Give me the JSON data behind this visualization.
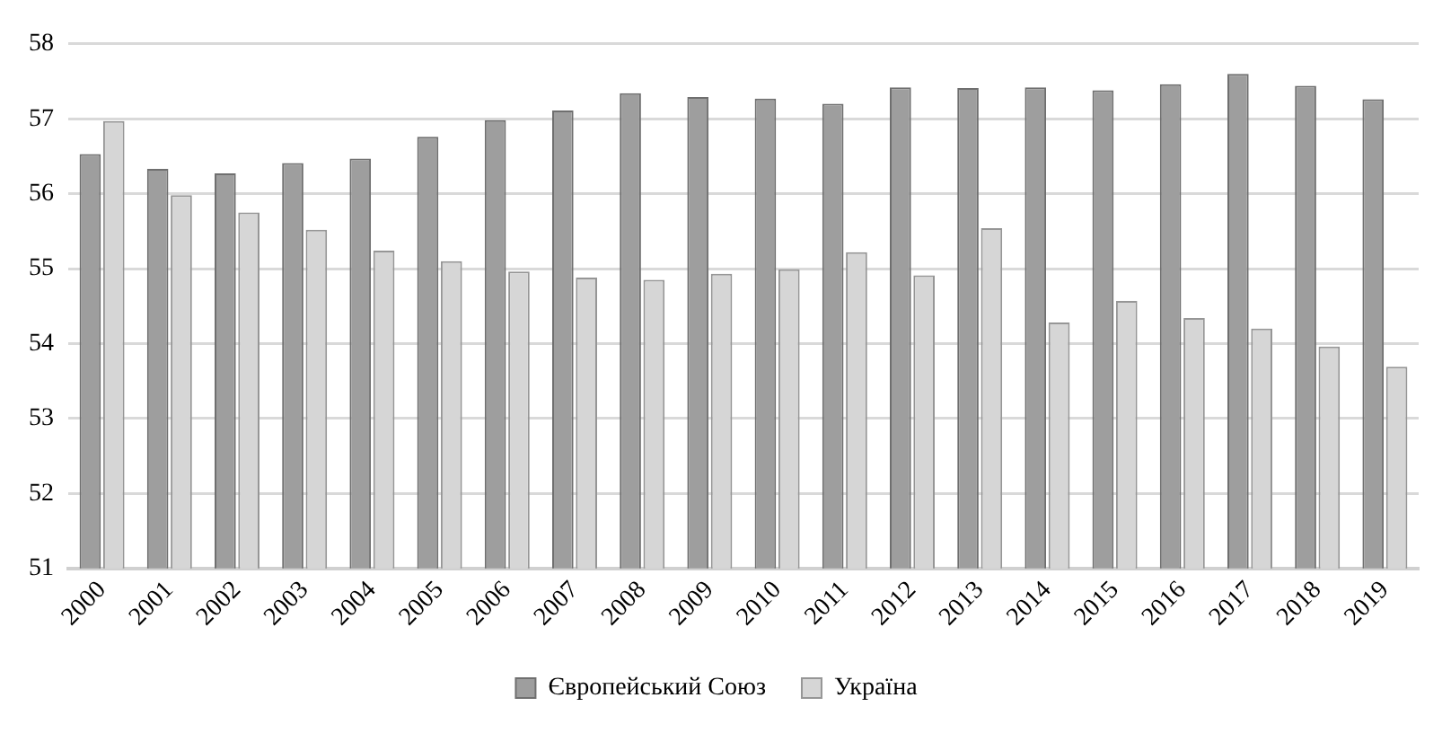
{
  "chart_data": {
    "type": "bar",
    "categories": [
      "2000",
      "2001",
      "2002",
      "2003",
      "2004",
      "2005",
      "2006",
      "2007",
      "2008",
      "2009",
      "2010",
      "2011",
      "2012",
      "2013",
      "2014",
      "2015",
      "2016",
      "2017",
      "2018",
      "2019"
    ],
    "series": [
      {
        "name": "Європейський Союз",
        "color": "#9e9e9e",
        "values": [
          56.53,
          56.33,
          56.27,
          56.41,
          56.47,
          56.76,
          56.98,
          57.11,
          57.34,
          57.29,
          57.27,
          57.2,
          57.42,
          57.41,
          57.42,
          57.38,
          57.46,
          57.6,
          57.44,
          57.26
        ]
      },
      {
        "name": "Україна",
        "color": "#d6d6d6",
        "values": [
          56.97,
          55.98,
          55.75,
          55.52,
          55.24,
          55.1,
          54.96,
          54.88,
          54.85,
          54.93,
          54.99,
          55.22,
          54.91,
          55.54,
          54.28,
          54.57,
          54.34,
          54.2,
          53.96,
          53.69
        ]
      }
    ],
    "ylim": [
      51,
      58
    ],
    "yticks": [
      51,
      52,
      53,
      54,
      55,
      56,
      57,
      58
    ],
    "grid": "y",
    "legend": "bottom"
  }
}
